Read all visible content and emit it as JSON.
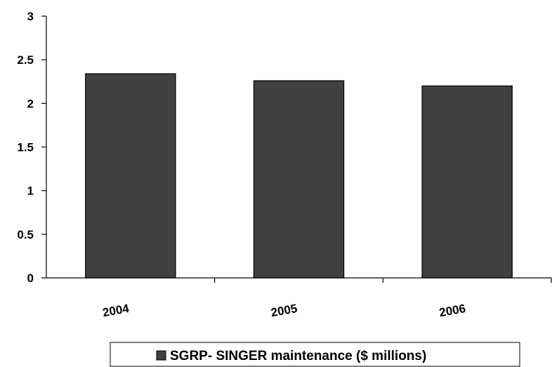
{
  "chart_data": {
    "type": "bar",
    "categories": [
      "2004",
      "2005",
      "2006"
    ],
    "series": [
      {
        "name": "SGRP- SINGER maintenance ($ millions)",
        "values": [
          2.34,
          2.26,
          2.2
        ],
        "color": "#404040"
      }
    ],
    "yticks": [
      "0",
      "0.5",
      "1",
      "1.5",
      "2",
      "2.5",
      "3"
    ],
    "ylim": [
      0,
      3
    ],
    "grid": false,
    "legend_position": "bottom"
  }
}
